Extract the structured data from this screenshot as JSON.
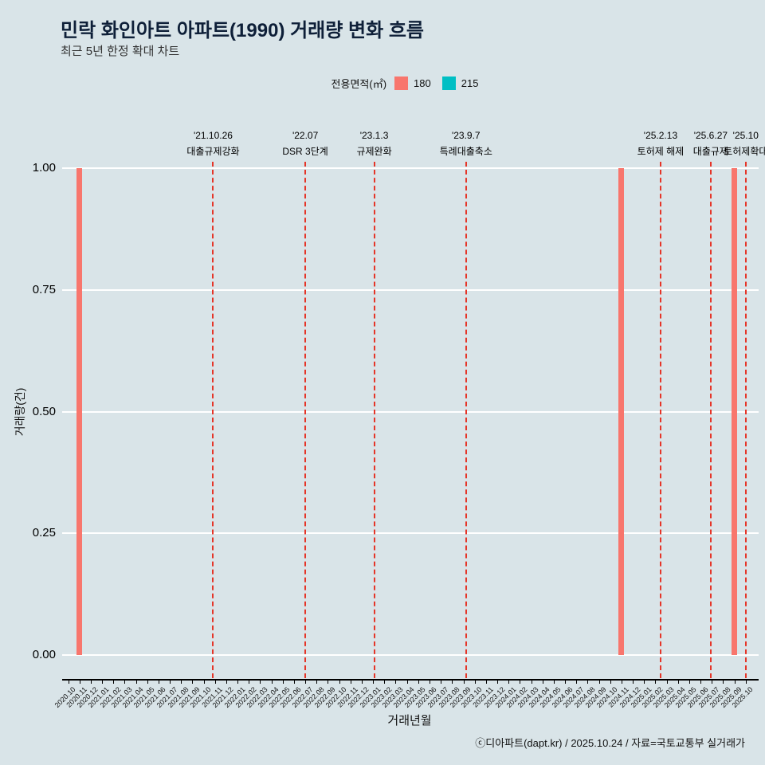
{
  "header": {
    "title": "민락 화인아트 아파트(1990) 거래량 변화 흐름",
    "subtitle": "최근 5년 한정 확대 차트"
  },
  "legend": {
    "title": "전용면적(㎡)",
    "items": [
      {
        "label": "180",
        "color": "#f8766d"
      },
      {
        "label": "215",
        "color": "#00bfc4"
      }
    ]
  },
  "footer": {
    "credit": "ⓒ디아파트(dapt.kr) / 2025.10.24 / 자료=국토교통부 실거래가"
  },
  "chart_data": {
    "type": "bar",
    "title": "민락 화인아트 아파트(1990) 거래량 변화 흐름",
    "subtitle": "최근 5년 한정 확대 차트",
    "xlabel": "거래년월",
    "ylabel": "거래량(건)",
    "ylim": [
      0,
      1.0
    ],
    "yticks": [
      {
        "label": "0.00",
        "value": 0.0
      },
      {
        "label": "0.25",
        "value": 0.25
      },
      {
        "label": "0.50",
        "value": 0.5
      },
      {
        "label": "0.75",
        "value": 0.75
      },
      {
        "label": "1.00",
        "value": 1.0
      }
    ],
    "grid": "horizontal-white",
    "legend_position": "top-center",
    "categories": [
      "2020.10",
      "2020.11",
      "2020.12",
      "2021.01",
      "2021.02",
      "2021.03",
      "2021.04",
      "2021.05",
      "2021.06",
      "2021.07",
      "2021.08",
      "2021.09",
      "2021.10",
      "2021.11",
      "2021.12",
      "2022.01",
      "2022.02",
      "2022.03",
      "2022.04",
      "2022.05",
      "2022.06",
      "2022.07",
      "2022.08",
      "2022.09",
      "2022.10",
      "2022.11",
      "2022.12",
      "2023.01",
      "2023.02",
      "2023.03",
      "2023.04",
      "2023.05",
      "2023.06",
      "2023.07",
      "2023.08",
      "2023.09",
      "2023.10",
      "2023.11",
      "2023.12",
      "2024.01",
      "2024.02",
      "2024.03",
      "2024.04",
      "2024.05",
      "2024.06",
      "2024.07",
      "2024.08",
      "2024.09",
      "2024.10",
      "2024.11",
      "2024.12",
      "2025.01",
      "2025.02",
      "2025.03",
      "2025.04",
      "2025.05",
      "2025.06",
      "2025.07",
      "2025.08",
      "2025.09",
      "2025.10"
    ],
    "series": [
      {
        "name": "180",
        "color": "#f8766d",
        "points": [
          {
            "category": "2020.11",
            "value": 1.0
          },
          {
            "category": "2024.11",
            "value": 1.0
          },
          {
            "category": "2025.09",
            "value": 1.0
          }
        ]
      },
      {
        "name": "215",
        "color": "#00bfc4",
        "points": []
      }
    ],
    "annotations": [
      {
        "date": "'21.10.26",
        "label": "대출규제강화",
        "x_index": 12.84
      },
      {
        "date": "'22.07",
        "label": "DSR 3단계",
        "x_index": 21.0
      },
      {
        "date": "'23.1.3",
        "label": "규제완화",
        "x_index": 27.1
      },
      {
        "date": "'23.9.7",
        "label": "특례대출축소",
        "x_index": 35.23
      },
      {
        "date": "'25.2.13",
        "label": "토허제 해제",
        "x_index": 52.46
      },
      {
        "date": "'25.6.27",
        "label": "대출규제",
        "x_index": 56.9
      },
      {
        "date": "'25.10",
        "label": "토허제확대",
        "x_index": 60.0
      }
    ],
    "annotation_line_color": "#e53528"
  }
}
